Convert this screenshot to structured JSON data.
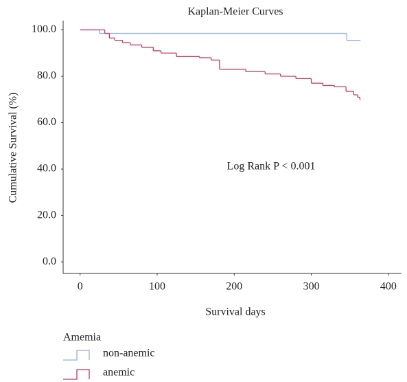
{
  "chart_data": {
    "type": "step",
    "title": "Kaplan-Meier Curves",
    "x_label": "Survival days",
    "y_label": "Cumulative Survival (%)",
    "annotation": "Log Rank P < 0.001",
    "legend_title": "Amemia",
    "xlim": [
      -22,
      417
    ],
    "xticks": [
      0,
      100,
      200,
      300,
      400
    ],
    "ylim": [
      -5,
      104
    ],
    "yticks": [
      {
        "value": 0,
        "label": "0.0"
      },
      {
        "value": 20,
        "label": "20.0"
      },
      {
        "value": 40,
        "label": "40.0"
      },
      {
        "value": 60,
        "label": "60.0"
      },
      {
        "value": 80,
        "label": "80.0"
      },
      {
        "value": 100,
        "label": "100.0"
      }
    ],
    "grid": false,
    "series": [
      {
        "name": "non-anemic",
        "color": "#8fb0e0",
        "x": [
          0,
          25,
          346,
          363
        ],
        "values": [
          100,
          98.5,
          95.5,
          95.5
        ]
      },
      {
        "name": "anemic",
        "color": "#c8365e",
        "x": [
          0,
          32,
          38,
          45,
          55,
          65,
          80,
          95,
          105,
          125,
          155,
          170,
          181,
          215,
          240,
          260,
          280,
          300,
          315,
          330,
          345,
          355,
          360,
          363
        ],
        "values": [
          100,
          98.5,
          96.5,
          95.5,
          94.5,
          93.5,
          92.5,
          91,
          90,
          88.5,
          88,
          87,
          83,
          82,
          81,
          80,
          79,
          77,
          76,
          75.5,
          73.5,
          72,
          71,
          70
        ]
      }
    ]
  }
}
